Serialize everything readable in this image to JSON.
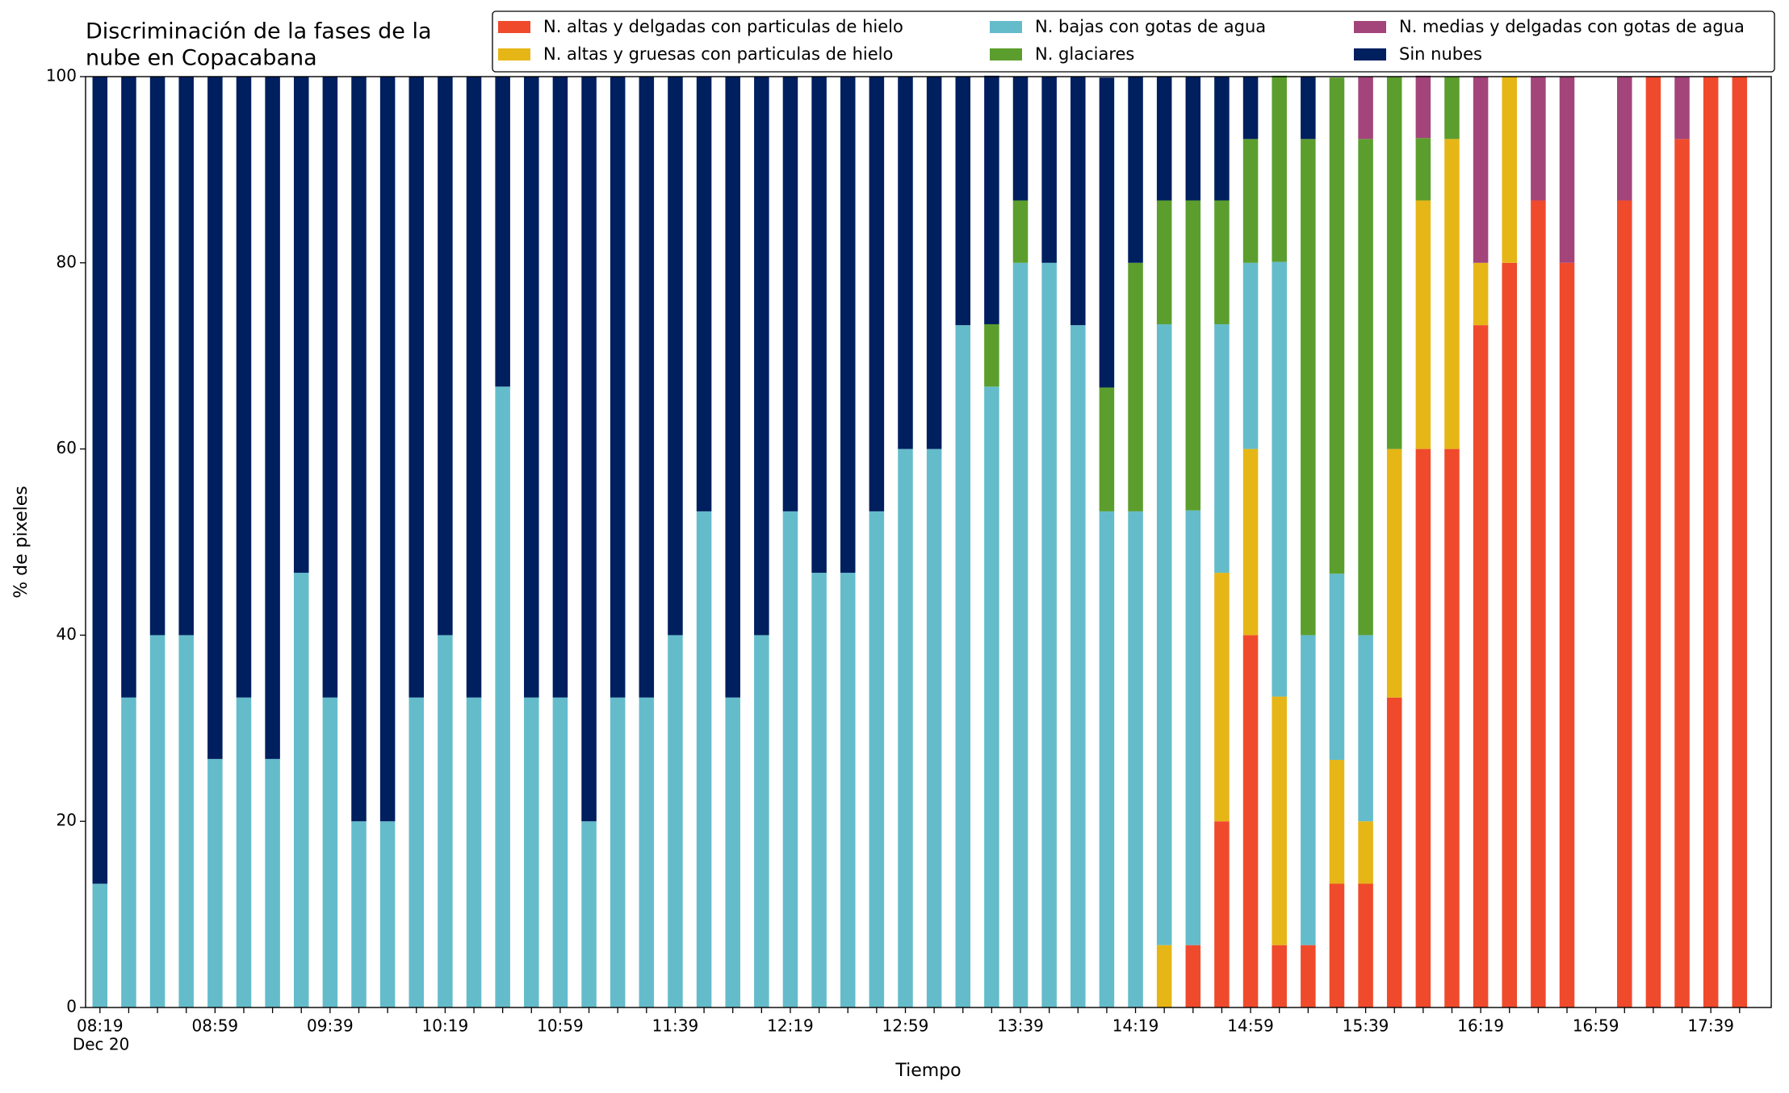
{
  "chart_data": {
    "type": "stacked_bar",
    "title": [
      "Discriminación de la fases de la",
      "nube en Copacabana"
    ],
    "xlabel": "Tiempo",
    "ylabel": "% de pixeles",
    "x_date_label": "Dec 20",
    "legend": "upper right",
    "grid": false,
    "ylim": [
      0,
      100
    ],
    "yticks": [
      0,
      20,
      40,
      60,
      80,
      100
    ],
    "categories": [
      "08:19",
      null,
      null,
      null,
      "08:59",
      null,
      null,
      null,
      "09:39",
      null,
      null,
      null,
      "10:19",
      null,
      null,
      null,
      "10:59",
      null,
      null,
      null,
      "11:39",
      null,
      null,
      null,
      "12:19",
      null,
      null,
      null,
      "12:59",
      null,
      null,
      null,
      "13:39",
      null,
      null,
      null,
      "14:19",
      null,
      null,
      null,
      "14:59",
      null,
      null,
      null,
      "15:39",
      null,
      null,
      null,
      "16:19",
      null,
      null,
      null,
      "16:59",
      null,
      null,
      null,
      "17:39",
      null
    ],
    "series": [
      {
        "name": "N. altas y delgadas con particulas de hielo",
        "color": "#f04a2c",
        "values": [
          0,
          0,
          0,
          0,
          0,
          0,
          0,
          0,
          0,
          0,
          0,
          0,
          0,
          0,
          0,
          0,
          0,
          0,
          0,
          0,
          0,
          0,
          0,
          0,
          0,
          0,
          0,
          0,
          0,
          0,
          0,
          0,
          0,
          0,
          0,
          0,
          0,
          0,
          6.7,
          20,
          40,
          6.7,
          6.7,
          13.3,
          13.3,
          33.3,
          60,
          60,
          73.3,
          80,
          86.7,
          80,
          0,
          86.7,
          100,
          93.3,
          100,
          100
        ]
      },
      {
        "name": "N. altas y gruesas con particulas de hielo",
        "color": "#e6b617",
        "values": [
          0,
          0,
          0,
          0,
          0,
          0,
          0,
          0,
          0,
          0,
          0,
          0,
          0,
          0,
          0,
          0,
          0,
          0,
          0,
          0,
          0,
          0,
          0,
          0,
          0,
          0,
          0,
          0,
          0,
          0,
          0,
          0,
          0,
          0,
          0,
          0,
          0,
          6.7,
          0,
          26.7,
          20,
          26.7,
          0,
          13.3,
          6.7,
          26.7,
          26.7,
          33.3,
          6.7,
          20,
          0,
          0,
          0,
          0,
          0,
          0,
          0,
          0
        ]
      },
      {
        "name": "N. bajas con gotas de agua",
        "color": "#64bccb",
        "values": [
          13.3,
          33.3,
          40,
          40,
          26.7,
          33.3,
          26.7,
          46.7,
          33.3,
          20,
          20,
          33.3,
          40,
          33.3,
          66.7,
          33.3,
          33.3,
          20,
          33.3,
          33.3,
          40,
          53.3,
          33.3,
          40,
          53.3,
          46.7,
          46.7,
          53.3,
          60,
          60,
          73.3,
          66.7,
          80,
          80,
          73.3,
          53.3,
          53.3,
          66.7,
          46.7,
          26.7,
          20,
          46.7,
          33.3,
          20,
          20,
          0,
          0,
          0,
          0,
          0,
          0,
          0,
          0,
          0,
          0,
          0,
          0,
          0
        ]
      },
      {
        "name": "N. glaciares",
        "color": "#5c9e2d",
        "values": [
          0,
          0,
          0,
          0,
          0,
          0,
          0,
          0,
          0,
          0,
          0,
          0,
          0,
          0,
          0,
          0,
          0,
          0,
          0,
          0,
          0,
          0,
          0,
          0,
          0,
          0,
          0,
          0,
          0,
          0,
          0,
          6.7,
          6.7,
          0,
          0,
          13.3,
          26.7,
          13.3,
          33.3,
          13.3,
          13.3,
          20,
          53.3,
          53.3,
          53.3,
          40,
          6.7,
          6.7,
          0,
          0,
          0,
          0,
          0,
          0,
          0,
          0,
          0,
          0
        ]
      },
      {
        "name": "N. medias y delgadas con gotas de agua",
        "color": "#a3457a",
        "values": [
          0,
          0,
          0,
          0,
          0,
          0,
          0,
          0,
          0,
          0,
          0,
          0,
          0,
          0,
          0,
          0,
          0,
          0,
          0,
          0,
          0,
          0,
          0,
          0,
          0,
          0,
          0,
          0,
          0,
          0,
          0,
          0,
          0,
          0,
          0,
          0,
          0,
          0,
          0,
          0,
          0,
          0,
          0,
          0,
          6.7,
          0,
          6.7,
          0,
          20,
          0,
          13.3,
          20,
          0,
          13.3,
          0,
          6.7,
          0,
          0
        ]
      },
      {
        "name": "Sin nubes",
        "color": "#001f5f",
        "values": [
          86.7,
          66.7,
          60,
          60,
          73.3,
          66.7,
          73.3,
          53.3,
          66.7,
          80,
          80,
          66.7,
          60,
          66.7,
          33.3,
          66.7,
          66.7,
          80,
          66.7,
          66.7,
          60,
          46.7,
          66.7,
          60,
          46.7,
          53.3,
          53.3,
          46.7,
          40,
          40,
          26.7,
          26.7,
          13.3,
          20,
          26.7,
          33.3,
          20,
          13.3,
          13.3,
          13.3,
          6.7,
          0,
          6.7,
          0,
          0,
          0,
          0,
          0,
          0,
          0,
          0,
          0,
          0,
          0,
          0,
          0,
          0,
          0
        ]
      }
    ]
  }
}
